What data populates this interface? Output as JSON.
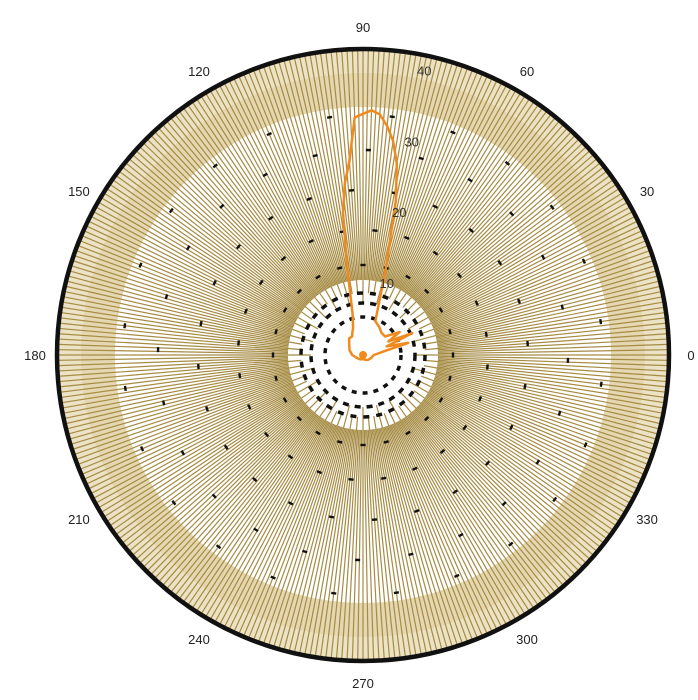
{
  "chart_data": {
    "type": "line",
    "subtype": "polar",
    "title": "",
    "angle_unit": "degrees",
    "angle_ticks": [
      0,
      30,
      60,
      90,
      120,
      150,
      180,
      210,
      240,
      270,
      300,
      330
    ],
    "angle_tick_labels": [
      "0",
      "30",
      "60",
      "90",
      "120",
      "150",
      "180",
      "210",
      "240",
      "270",
      "300",
      "330"
    ],
    "radial_ticks": [
      10,
      20,
      30,
      40
    ],
    "radial_tick_labels": [
      "10",
      "20",
      "30",
      "40"
    ],
    "rlim": [
      0,
      40
    ],
    "grid": true,
    "series": [
      {
        "theta": [
          0,
          10,
          15,
          20,
          24,
          28,
          32,
          40,
          50,
          60,
          70,
          75,
          78,
          80,
          82,
          84,
          86,
          88,
          90,
          92,
          94,
          96,
          98,
          100,
          104,
          110,
          115,
          120,
          130,
          140,
          160,
          180,
          200,
          220,
          240,
          260,
          270,
          280,
          300,
          320,
          340,
          360
        ],
        "r": [
          1.5,
          3,
          6.5,
          3.5,
          7.5,
          4,
          6,
          4,
          4,
          4.5,
          5,
          12,
          22,
          27,
          30,
          32,
          33.5,
          34,
          33.5,
          33,
          27,
          24,
          20,
          13,
          6,
          4,
          3.5,
          3,
          3,
          2.5,
          2,
          1.5,
          1,
          0.8,
          0.7,
          0.6,
          0.5,
          0.6,
          0.8,
          1,
          1.2,
          1.5
        ]
      }
    ],
    "colors": {
      "series_line": "#ef8a1e",
      "dense_grid": "#a58b43",
      "inner_band": "#e4d7b1",
      "ring_marker": "#111111",
      "outer_circle": "#111111"
    }
  }
}
